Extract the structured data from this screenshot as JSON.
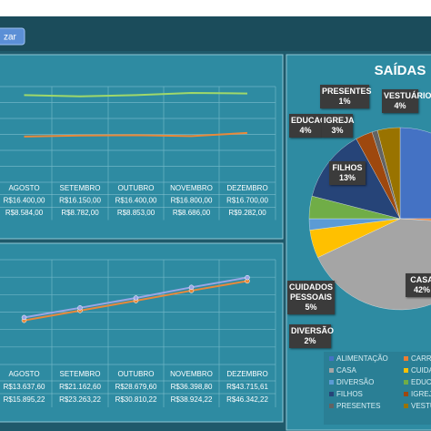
{
  "header": {
    "button": "zar"
  },
  "chart_data": [
    {
      "type": "line",
      "markers": false,
      "categories": [
        "AGOSTO",
        "SETEMBRO",
        "OUTUBRO",
        "NOVEMBRO",
        "DEZEMBRO"
      ],
      "ylim": [
        0,
        18000
      ],
      "series": [
        {
          "color": "#9fd86a",
          "values": [
            16400,
            16150,
            16400,
            16800,
            16700
          ],
          "value_labels": [
            "R$16.400,00",
            "R$16.150,00",
            "R$16.400,00",
            "R$16.800,00",
            "R$16.700,00"
          ]
        },
        {
          "color": "#e8893a",
          "values": [
            8584,
            8782,
            8853,
            8686,
            9282
          ],
          "value_labels": [
            "R$8.584,00",
            "R$8.782,00",
            "R$8.853,00",
            "R$8.686,00",
            "R$9.282,00"
          ]
        }
      ]
    },
    {
      "type": "line",
      "markers": true,
      "categories": [
        "AGOSTO",
        "SETEMBRO",
        "OUTUBRO",
        "NOVEMBRO",
        "DEZEMBRO"
      ],
      "ylim": [
        -20000,
        60000
      ],
      "series": [
        {
          "color": "#e8893a",
          "values": [
            13637.6,
            21162.6,
            28679.6,
            36398.8,
            43715.61
          ],
          "value_labels": [
            "R$13.637,60",
            "R$21.162,60",
            "R$28.679,60",
            "R$36.398,80",
            "R$43.715,61"
          ]
        },
        {
          "color": "#9aa6e6",
          "values": [
            15895.22,
            23263.22,
            30810.22,
            38924.22,
            46342.22
          ],
          "value_labels": [
            "R$15.895,22",
            "R$23.263,22",
            "R$30.810,22",
            "R$38.924,22",
            "R$46.342,22"
          ]
        }
      ]
    },
    {
      "type": "pie",
      "title": "SAÍDAS",
      "categories": [
        "ALIMENTAÇÃO",
        "CARRO",
        "CASA",
        "CUIDA",
        "DIVERSÃO",
        "EDUCA",
        "FILHOS",
        "IGREJA",
        "PRESENTES",
        "VESTU"
      ],
      "values": [
        25,
        1,
        42,
        5,
        2,
        4,
        13,
        3,
        1,
        4
      ],
      "data_labels": [
        null,
        null,
        "CASA",
        "CUIDADOS PESSOAIS",
        "DIVERSÃO",
        "EDUCAÇ",
        "FILHOS",
        "IGREJA",
        "PRESENTES",
        "VESTUÁRIO"
      ],
      "value_labels": [
        null,
        null,
        "42%",
        "5%",
        "2%",
        "4%",
        "13%",
        "3%",
        "1%",
        "4%"
      ],
      "colors": [
        "#4472c4",
        "#ed7d31",
        "#a5a5a5",
        "#ffc000",
        "#5b9bd5",
        "#70ad47",
        "#264478",
        "#9e480e",
        "#636363",
        "#997300"
      ]
    }
  ]
}
